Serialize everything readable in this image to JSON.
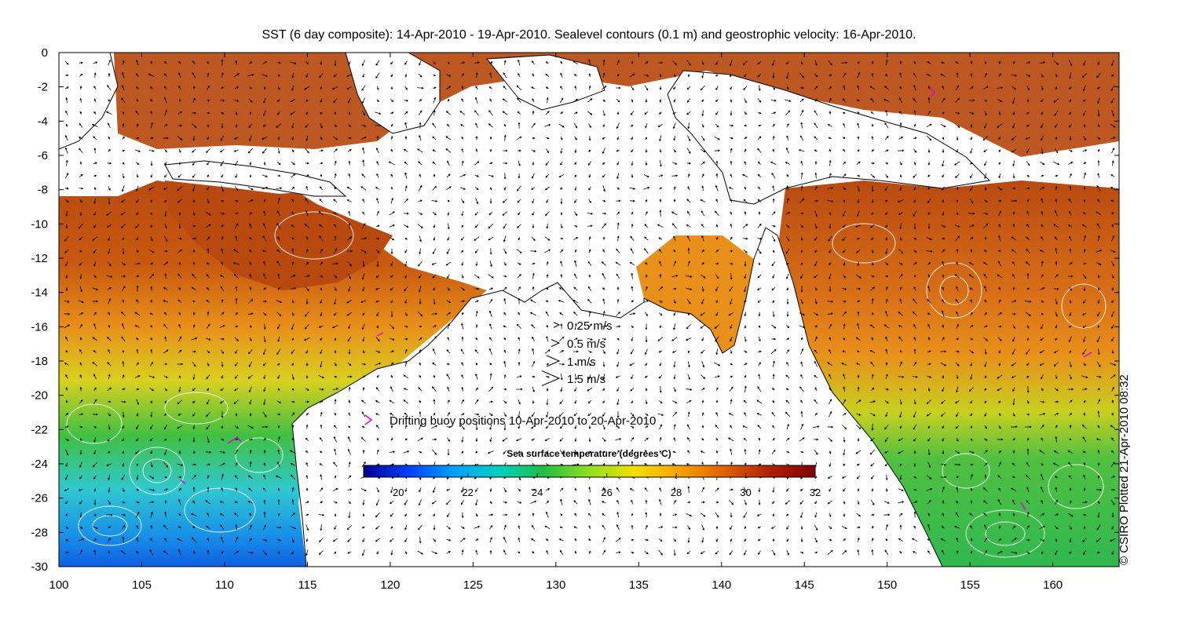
{
  "title": "SST (6 day composite): 14-Apr-2010 - 19-Apr-2010. Sealevel contours (0.1 m) and geostrophic velocity: 16-Apr-2010.",
  "credit": "© CSIRO Plotted 21-Apr-2010 08:32",
  "axes": {
    "xlim": [
      100,
      164
    ],
    "ylim": [
      -30,
      0
    ],
    "xticks": [
      "100",
      "105",
      "110",
      "115",
      "120",
      "125",
      "130",
      "135",
      "140",
      "145",
      "150",
      "155",
      "160"
    ],
    "yticks": [
      "0",
      "-2",
      "-4",
      "-6",
      "-8",
      "-10",
      "-12",
      "-14",
      "-16",
      "-18",
      "-20",
      "-22",
      "-24",
      "-26",
      "-28",
      "-30"
    ]
  },
  "velocity_legend": {
    "items": [
      {
        "label": "0.25 m/s",
        "speed": 0.25
      },
      {
        "label": "0.5 m/s",
        "speed": 0.5
      },
      {
        "label": "1 m/s",
        "speed": 1
      },
      {
        "label": "1.5 m/s",
        "speed": 1.5
      }
    ]
  },
  "buoy_legend": {
    "label": "Drifting buoy positions 10-Apr-2010 to 20-Apr-2010",
    "color": "#dd00dd"
  },
  "colorbar": {
    "title": "Sea surface temperature (degrees C)",
    "range": [
      19,
      32
    ],
    "ticks": [
      "20",
      "22",
      "24",
      "26",
      "28",
      "30",
      "32"
    ],
    "stops": [
      "#00008f",
      "#0040ff",
      "#00a0ff",
      "#00d0c0",
      "#20c040",
      "#90e020",
      "#f0e000",
      "#f8a000",
      "#e06000",
      "#b02000",
      "#800000"
    ]
  },
  "colors": {
    "land": "#ffffff",
    "coast": "#000000",
    "contour": "#ffffff",
    "warm_tropics": "#b84a10",
    "orange_band": "#e8901a",
    "yellow_band": "#d8d020",
    "green_band": "#40c040",
    "cyan_band": "#30c8d0",
    "blue_band": "#1890e8"
  }
}
